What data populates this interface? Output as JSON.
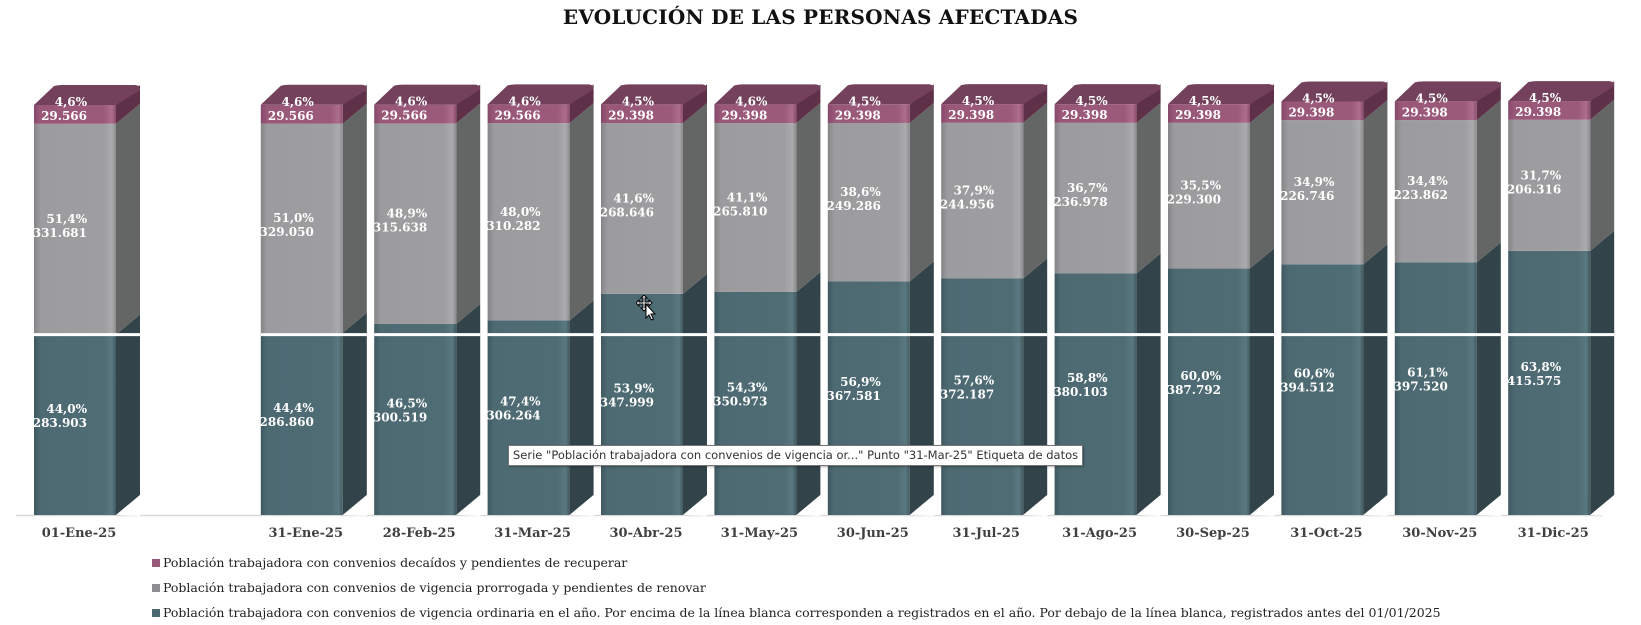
{
  "chart_data": {
    "type": "bar",
    "stacked": true,
    "style": "3d-stacked-column",
    "title": "EVOLUCIÓN DE LAS PERSONAS AFECTADAS",
    "xlabel": "",
    "ylabel": "",
    "legend_position": "bottom-left",
    "categories": [
      "01-Ene-25",
      "31-Ene-25",
      "28-Feb-25",
      "31-Mar-25",
      "30-Abr-25",
      "31-May-25",
      "30-Jun-25",
      "31-Jul-25",
      "31-Ago-25",
      "30-Sep-25",
      "31-Oct-25",
      "30-Nov-25",
      "31-Dic-25"
    ],
    "series": [
      {
        "name": "Población trabajadora con convenios de vigencia ordinaria en el año. Por encima de la línea blanca corresponden a registrados en el año. Por debajo de la línea blanca, registrados antes del 01/01/2025",
        "color": "#4d6a73",
        "values": [
          283903,
          286860,
          300519,
          306264,
          347999,
          350973,
          367581,
          372187,
          380103,
          387792,
          394512,
          397520,
          415575
        ],
        "value_labels": [
          "283.903",
          "286.860",
          "300.519",
          "306.264",
          "347.999",
          "350.973",
          "367.581",
          "372.187",
          "380.103",
          "387.792",
          "394.512",
          "397.520",
          "415.575"
        ],
        "percent_labels": [
          "44,0%",
          "44,4%",
          "46,5%",
          "47,4%",
          "53,9%",
          "54,3%",
          "56,9%",
          "57,6%",
          "58,8%",
          "60,0%",
          "60,6%",
          "61,1%",
          "63,8%"
        ]
      },
      {
        "name": "Población trabajadora con convenios de vigencia prorrogada y pendientes de renovar",
        "color": "#9c9c9e",
        "values": [
          331681,
          329050,
          315638,
          310282,
          268646,
          265810,
          249286,
          244956,
          236978,
          229300,
          226746,
          223862,
          206316
        ],
        "value_labels": [
          "331.681",
          "329.050",
          "315.638",
          "310.282",
          "268.646",
          "265.810",
          "249.286",
          "244.956",
          "236.978",
          "229.300",
          "226.746",
          "223.862",
          "206.316"
        ],
        "percent_labels": [
          "51,4%",
          "51,0%",
          "48,9%",
          "48,0%",
          "41,6%",
          "41,1%",
          "38,6%",
          "37,9%",
          "36,7%",
          "35,5%",
          "34,9%",
          "34,4%",
          "31,7%"
        ]
      },
      {
        "name": "Población trabajadora con convenios decaídos y pendientes de recuperar",
        "color": "#9a5878",
        "values": [
          29566,
          29566,
          29566,
          29566,
          29398,
          29398,
          29398,
          29398,
          29398,
          29398,
          29398,
          29398,
          29398
        ],
        "value_labels": [
          "29.566",
          "29.566",
          "29.566",
          "29.566",
          "29.398",
          "29.398",
          "29.398",
          "29.398",
          "29.398",
          "29.398",
          "29.398",
          "29.398",
          "29.398"
        ],
        "percent_labels": [
          "4,6%",
          "4,6%",
          "4,6%",
          "4,6%",
          "4,5%",
          "4,6%",
          "4,5%",
          "4,5%",
          "4,5%",
          "4,5%",
          "4,5%",
          "4,5%",
          "4,5%"
        ]
      }
    ],
    "white_line_value": 283903,
    "grid": false
  },
  "legend": [
    {
      "label": "Población trabajadora con convenios decaídos y pendientes de recuperar",
      "color": "#9a5878"
    },
    {
      "label": "Población trabajadora con convenios de vigencia prorrogada y pendientes de renovar",
      "color": "#9c9c9e"
    },
    {
      "label": "Población trabajadora con convenios de vigencia ordinaria en el año. Por encima de la línea blanca corresponden a registrados en el año. Por debajo de la línea blanca, registrados antes del 01/01/2025",
      "color": "#4d6a73"
    }
  ],
  "tooltip": {
    "text": "Serie \"Población trabajadora con convenios de vigencia or...\" Punto \"31-Mar-25\" Etiqueta de datos"
  }
}
